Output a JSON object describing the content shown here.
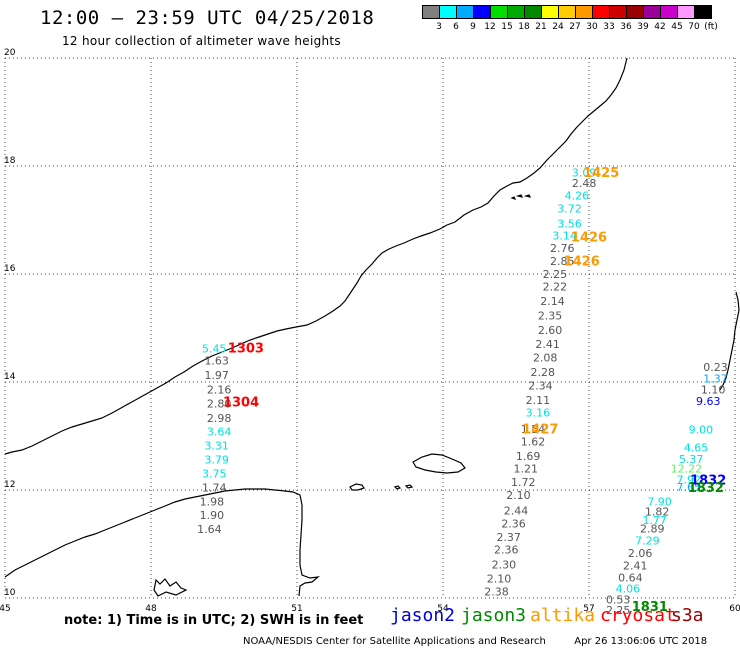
{
  "header": {
    "title": "12:00 – 23:59 UTC 04/25/2018",
    "subtitle": "12 hour collection of altimeter wave heights"
  },
  "colorbar": {
    "colors": [
      "#808080",
      "#00ffff",
      "#00aaff",
      "#0000ff",
      "#00dd00",
      "#00aa00",
      "#008800",
      "#ffff00",
      "#ffcc00",
      "#ff9900",
      "#ff0000",
      "#cc0000",
      "#990000",
      "#990099",
      "#cc00cc",
      "#ff99ff",
      "#000000"
    ],
    "labels": [
      "3",
      "6",
      "9",
      "12",
      "15",
      "18",
      "21",
      "24",
      "27",
      "30",
      "33",
      "36",
      "39",
      "42",
      "45",
      "70",
      "(ft)"
    ]
  },
  "axes": {
    "x_ticks": [
      "45",
      "48",
      "51",
      "54",
      "57",
      "60"
    ],
    "y_ticks": [
      "20",
      "18",
      "16",
      "14",
      "12",
      "10"
    ]
  },
  "observations": [
    {
      "v": "3.09",
      "c": "#00e0e0",
      "lon": 56.9,
      "lat": 17.81
    },
    {
      "v": "2.48",
      "c": "#555555",
      "lon": 56.9,
      "lat": 17.61
    },
    {
      "v": "4.26",
      "c": "#00e0e0",
      "lon": 56.75,
      "lat": 17.38
    },
    {
      "v": "3.72",
      "c": "#00e0e0",
      "lon": 56.6,
      "lat": 17.14
    },
    {
      "v": "3.56",
      "c": "#00e0e0",
      "lon": 56.6,
      "lat": 16.86
    },
    {
      "v": "3.14",
      "c": "#00e0e0",
      "lon": 56.5,
      "lat": 16.64
    },
    {
      "v": "2.76",
      "c": "#555555",
      "lon": 56.45,
      "lat": 16.41
    },
    {
      "v": "2.85",
      "c": "#555555",
      "lon": 56.45,
      "lat": 16.17
    },
    {
      "v": "2.25",
      "c": "#555555",
      "lon": 56.3,
      "lat": 15.93
    },
    {
      "v": "2.22",
      "c": "#555555",
      "lon": 56.3,
      "lat": 15.69
    },
    {
      "v": "2.14",
      "c": "#555555",
      "lon": 56.25,
      "lat": 15.43
    },
    {
      "v": "2.35",
      "c": "#555555",
      "lon": 56.2,
      "lat": 15.16
    },
    {
      "v": "2.60",
      "c": "#555555",
      "lon": 56.2,
      "lat": 14.89
    },
    {
      "v": "2.41",
      "c": "#555555",
      "lon": 56.15,
      "lat": 14.63
    },
    {
      "v": "2.08",
      "c": "#555555",
      "lon": 56.1,
      "lat": 14.38
    },
    {
      "v": "2.28",
      "c": "#555555",
      "lon": 56.05,
      "lat": 14.11
    },
    {
      "v": "2.34",
      "c": "#555555",
      "lon": 56.0,
      "lat": 13.86
    },
    {
      "v": "2.11",
      "c": "#555555",
      "lon": 55.95,
      "lat": 13.59
    },
    {
      "v": "3.16",
      "c": "#00e0e0",
      "lon": 55.95,
      "lat": 13.36
    },
    {
      "v": "1.54",
      "c": "#555555",
      "lon": 55.85,
      "lat": 13.06
    },
    {
      "v": "1.62",
      "c": "#555555",
      "lon": 55.85,
      "lat": 12.82
    },
    {
      "v": "1.69",
      "c": "#555555",
      "lon": 55.75,
      "lat": 12.56
    },
    {
      "v": "1.21",
      "c": "#555555",
      "lon": 55.7,
      "lat": 12.32
    },
    {
      "v": "1.72",
      "c": "#555555",
      "lon": 55.65,
      "lat": 12.07
    },
    {
      "v": "2.10",
      "c": "#555555",
      "lon": 55.55,
      "lat": 11.83
    },
    {
      "v": "2.44",
      "c": "#555555",
      "lon": 55.5,
      "lat": 11.55
    },
    {
      "v": "2.36",
      "c": "#555555",
      "lon": 55.45,
      "lat": 11.31
    },
    {
      "v": "2.37",
      "c": "#555555",
      "lon": 55.35,
      "lat": 11.06
    },
    {
      "v": "2.36",
      "c": "#555555",
      "lon": 55.3,
      "lat": 10.82
    },
    {
      "v": "2.30",
      "c": "#555555",
      "lon": 55.25,
      "lat": 10.55
    },
    {
      "v": "2.10",
      "c": "#555555",
      "lon": 55.15,
      "lat": 10.29
    },
    {
      "v": "2.38",
      "c": "#555555",
      "lon": 55.1,
      "lat": 10.05
    },
    {
      "v": "5.45",
      "c": "#00e0e0",
      "lon": 49.3,
      "lat": 14.55
    },
    {
      "v": "1.63",
      "c": "#555555",
      "lon": 49.35,
      "lat": 14.32
    },
    {
      "v": "1.97",
      "c": "#555555",
      "lon": 49.35,
      "lat": 14.06
    },
    {
      "v": "2.16",
      "c": "#555555",
      "lon": 49.4,
      "lat": 13.79
    },
    {
      "v": "2.80",
      "c": "#555555",
      "lon": 49.4,
      "lat": 13.53
    },
    {
      "v": "2.98",
      "c": "#555555",
      "lon": 49.4,
      "lat": 13.26
    },
    {
      "v": "3.64",
      "c": "#00e0e0",
      "lon": 49.4,
      "lat": 13.01
    },
    {
      "v": "3.31",
      "c": "#00e0e0",
      "lon": 49.35,
      "lat": 12.75
    },
    {
      "v": "3.79",
      "c": "#00e0e0",
      "lon": 49.35,
      "lat": 12.49
    },
    {
      "v": "3.75",
      "c": "#00e0e0",
      "lon": 49.3,
      "lat": 12.23
    },
    {
      "v": "1.74",
      "c": "#555555",
      "lon": 49.3,
      "lat": 11.97
    },
    {
      "v": "1.98",
      "c": "#555555",
      "lon": 49.25,
      "lat": 11.71
    },
    {
      "v": "1.90",
      "c": "#555555",
      "lon": 49.25,
      "lat": 11.46
    },
    {
      "v": "1.64",
      "c": "#555555",
      "lon": 49.2,
      "lat": 11.2
    },
    {
      "v": "0.23",
      "c": "#555555",
      "lon": 59.6,
      "lat": 14.2
    },
    {
      "v": "1.37",
      "c": "#00aaff",
      "lon": 59.6,
      "lat": 13.99
    },
    {
      "v": "1.10",
      "c": "#555555",
      "lon": 59.55,
      "lat": 13.79
    },
    {
      "v": "9.63",
      "c": "#0000ff",
      "lon": 59.45,
      "lat": 13.57
    },
    {
      "v": "9.00",
      "c": "#00e0e0",
      "lon": 59.3,
      "lat": 13.05
    },
    {
      "v": "4.65",
      "c": "#00e0e0",
      "lon": 59.2,
      "lat": 12.71
    },
    {
      "v": "5.37",
      "c": "#00e0e0",
      "lon": 59.1,
      "lat": 12.5
    },
    {
      "v": "12.22",
      "c": "#66ee66",
      "lon": 59.0,
      "lat": 12.32
    },
    {
      "v": "7.92",
      "c": "#00e0e0",
      "lon": 59.05,
      "lat": 12.12
    },
    {
      "v": "7.65",
      "c": "#00aaff",
      "lon": 59.05,
      "lat": 11.98
    },
    {
      "v": "7.90",
      "c": "#00e0e0",
      "lon": 58.45,
      "lat": 11.71
    },
    {
      "v": "1.82",
      "c": "#555555",
      "lon": 58.4,
      "lat": 11.53
    },
    {
      "v": "1.77",
      "c": "#00e0e0",
      "lon": 58.35,
      "lat": 11.37
    },
    {
      "v": "2.89",
      "c": "#555555",
      "lon": 58.3,
      "lat": 11.21
    },
    {
      "v": "7.29",
      "c": "#00e0e0",
      "lon": 58.2,
      "lat": 10.99
    },
    {
      "v": "2.06",
      "c": "#555555",
      "lon": 58.05,
      "lat": 10.76
    },
    {
      "v": "2.41",
      "c": "#555555",
      "lon": 57.95,
      "lat": 10.53
    },
    {
      "v": "0.64",
      "c": "#555555",
      "lon": 57.85,
      "lat": 10.31
    },
    {
      "v": "4.06",
      "c": "#00e0e0",
      "lon": 57.8,
      "lat": 10.1
    },
    {
      "v": "0.53",
      "c": "#555555",
      "lon": 57.6,
      "lat": 9.9
    },
    {
      "v": "2.25",
      "c": "#555555",
      "lon": 57.6,
      "lat": 9.7
    }
  ],
  "pass_labels": [
    {
      "v": "1425",
      "c": "#ff9900",
      "lon": 57.25,
      "lat": 17.8
    },
    {
      "v": "1426",
      "c": "#ff9900",
      "lon": 57.0,
      "lat": 16.6
    },
    {
      "v": "1426",
      "c": "#ff9900",
      "lon": 56.85,
      "lat": 16.16
    },
    {
      "v": "1427",
      "c": "#ff9900",
      "lon": 56.0,
      "lat": 13.05
    },
    {
      "v": "1303",
      "c": "#ff0000",
      "lon": 49.95,
      "lat": 14.55
    },
    {
      "v": "1304",
      "c": "#ff0000",
      "lon": 49.85,
      "lat": 13.55
    },
    {
      "v": "1832",
      "c": "#0000ff",
      "lon": 59.45,
      "lat": 12.1
    },
    {
      "v": "1832",
      "c": "#008800",
      "lon": 59.4,
      "lat": 11.96
    },
    {
      "v": "1831",
      "c": "#008800",
      "lon": 58.25,
      "lat": 9.76
    }
  ],
  "footer": {
    "note": "note: 1) Time is in UTC; 2) SWH is in feet",
    "satellites": [
      {
        "name": "jason2",
        "color": "#0000dd"
      },
      {
        "name": "jason3",
        "color": "#008800"
      },
      {
        "name": "altika",
        "color": "#ff9900"
      },
      {
        "name": "cryosat",
        "color": "#ff0000"
      },
      {
        "name": "s3a",
        "color": "#990000"
      }
    ],
    "credit": "NOAA/NESDIS Center for Satellite Applications and Research",
    "timestamp": "Apr 26 13:06:06 UTC 2018"
  }
}
